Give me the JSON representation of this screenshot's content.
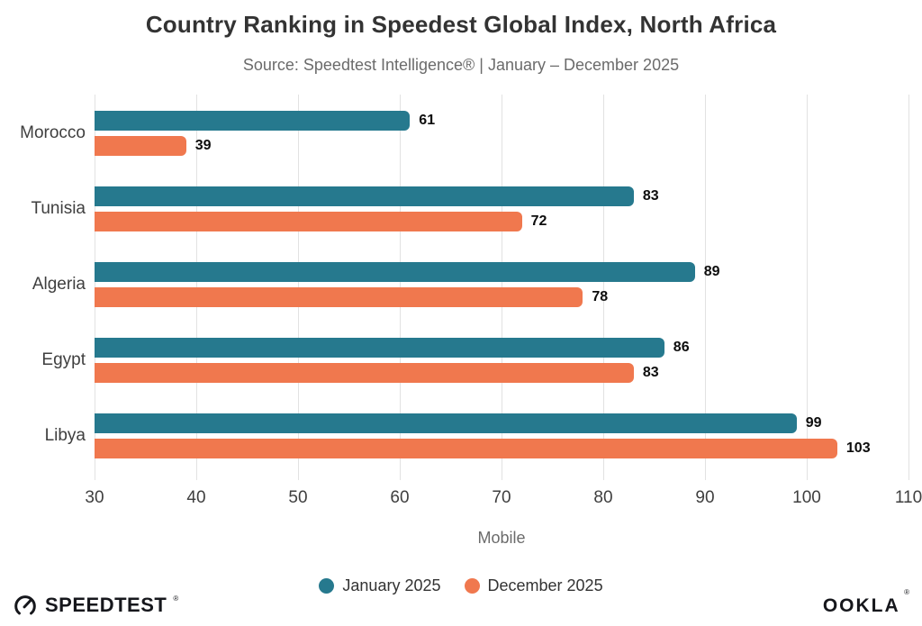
{
  "header": {
    "title": "Country Ranking in Speedest Global Index, North Africa",
    "subtitle": "Source: Speedtest Intelligence® | January – December 2025"
  },
  "chart_data": {
    "type": "bar",
    "orientation": "horizontal",
    "title": "Country Ranking in Speedest Global Index, North Africa",
    "subtitle": "Source: Speedtest Intelligence® | January – December 2025",
    "categories": [
      "Morocco",
      "Tunisia",
      "Algeria",
      "Egypt",
      "Libya"
    ],
    "series": [
      {
        "name": "January 2025",
        "color": "#26798E",
        "values": [
          61,
          83,
          89,
          86,
          99
        ]
      },
      {
        "name": "December 2025",
        "color": "#F0784E",
        "values": [
          39,
          72,
          78,
          83,
          103
        ]
      }
    ],
    "xlabel": "Mobile",
    "ylabel": "",
    "xlim": [
      30,
      110
    ],
    "xticks": [
      30,
      40,
      50,
      60,
      70,
      80,
      90,
      100,
      110
    ],
    "grid": true,
    "legend_position": "bottom",
    "value_labels": true
  },
  "footer": {
    "speedtest_label": "SPEEDTEST",
    "speedtest_reg": "®",
    "ookla_label": "OOKLA",
    "ookla_reg": "®"
  }
}
